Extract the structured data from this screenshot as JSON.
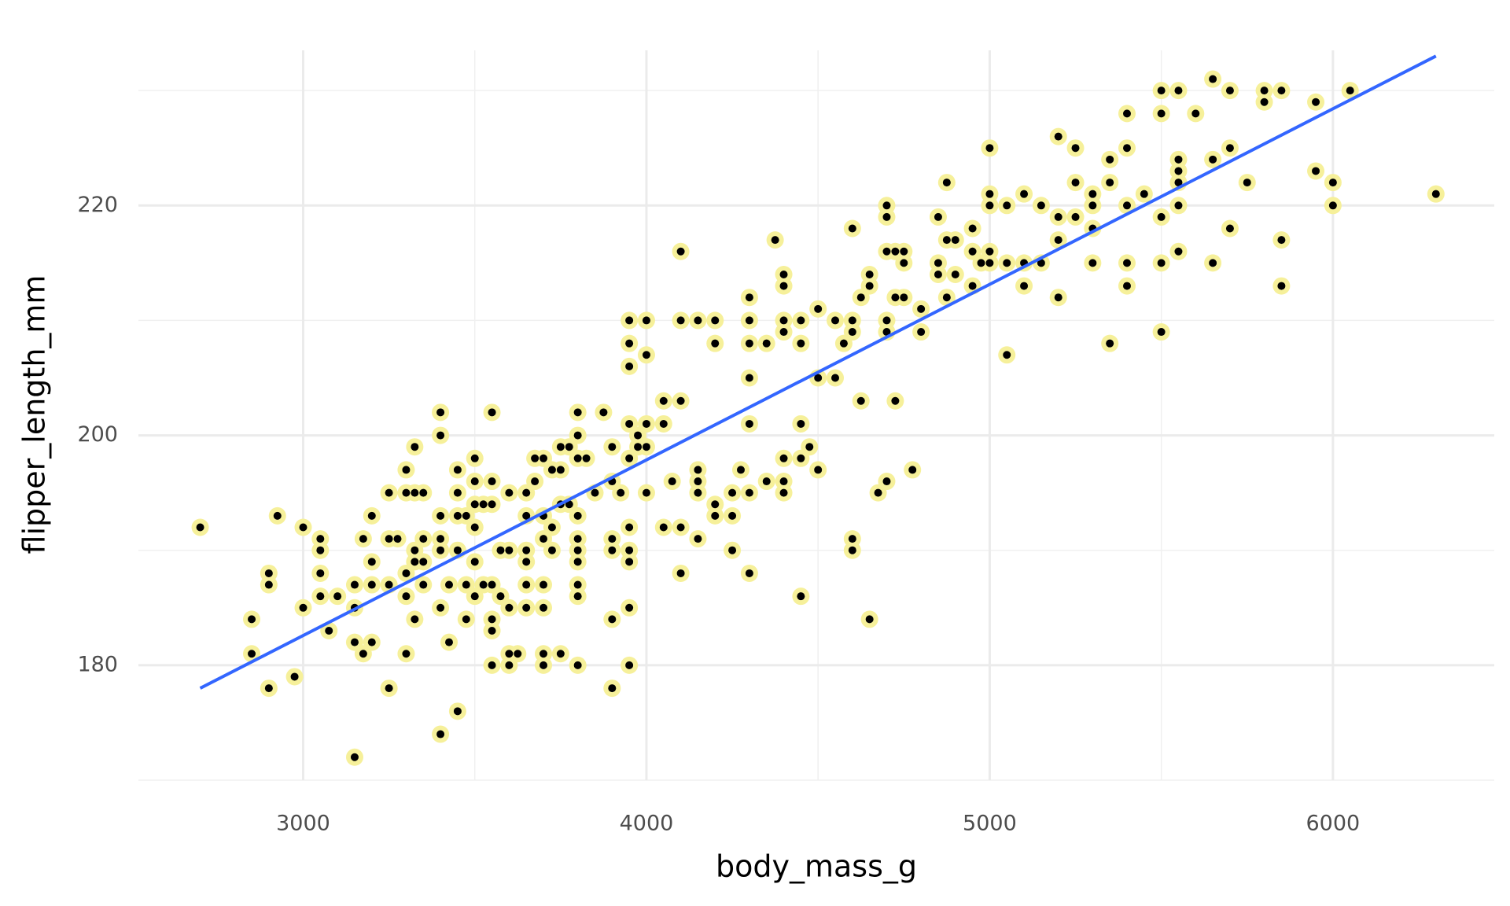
{
  "chart_data": {
    "type": "scatter",
    "x_label": "body_mass_g",
    "y_label": "flipper_length_mm",
    "xlim": [
      2520,
      6470
    ],
    "ylim": [
      170,
      233.5
    ],
    "xticks": [
      3000,
      4000,
      5000,
      6000
    ],
    "yticks": [
      180,
      200,
      220
    ],
    "xminor": [
      3500,
      4500,
      5500
    ],
    "yminor": [
      170,
      190,
      210,
      230
    ],
    "grid": true,
    "point_color": "#000000",
    "halo_color": "#f6f09a",
    "line_color": "#3366ff",
    "trend": {
      "x": [
        2700,
        6300
      ],
      "y": [
        178,
        233
      ]
    },
    "x": [
      2700,
      2850,
      2850,
      2900,
      2900,
      2900,
      2925,
      2975,
      3000,
      3000,
      3050,
      3050,
      3050,
      3050,
      3075,
      3100,
      3150,
      3150,
      3150,
      3150,
      3175,
      3175,
      3200,
      3200,
      3200,
      3200,
      3250,
      3250,
      3250,
      3250,
      3275,
      3300,
      3300,
      3300,
      3300,
      3300,
      3325,
      3325,
      3325,
      3325,
      3325,
      3350,
      3350,
      3350,
      3350,
      3400,
      3400,
      3400,
      3400,
      3400,
      3400,
      3400,
      3425,
      3425,
      3450,
      3450,
      3450,
      3450,
      3450,
      3475,
      3475,
      3475,
      3500,
      3500,
      3500,
      3500,
      3500,
      3500,
      3525,
      3525,
      3550,
      3550,
      3550,
      3550,
      3550,
      3550,
      3550,
      3575,
      3575,
      3600,
      3600,
      3600,
      3600,
      3600,
      3625,
      3650,
      3650,
      3650,
      3650,
      3650,
      3650,
      3675,
      3675,
      3700,
      3700,
      3700,
      3700,
      3700,
      3700,
      3700,
      3725,
      3725,
      3725,
      3750,
      3750,
      3750,
      3750,
      3775,
      3775,
      3800,
      3800,
      3800,
      3800,
      3800,
      3800,
      3800,
      3800,
      3800,
      3800,
      3825,
      3850,
      3875,
      3900,
      3900,
      3900,
      3900,
      3900,
      3900,
      3925,
      3950,
      3950,
      3950,
      3950,
      3950,
      3950,
      3950,
      3950,
      3950,
      3950,
      3975,
      3975,
      4000,
      4000,
      4000,
      4000,
      4000,
      4050,
      4050,
      4050,
      4075,
      4100,
      4100,
      4100,
      4100,
      4100,
      4150,
      4150,
      4150,
      4150,
      4150,
      4200,
      4200,
      4200,
      4200,
      4250,
      4250,
      4250,
      4275,
      4300,
      4300,
      4300,
      4300,
      4300,
      4300,
      4300,
      4350,
      4350,
      4375,
      4400,
      4400,
      4400,
      4400,
      4400,
      4400,
      4400,
      4450,
      4450,
      4450,
      4450,
      4450,
      4475,
      4500,
      4500,
      4500,
      4550,
      4550,
      4575,
      4600,
      4600,
      4600,
      4600,
      4600,
      4625,
      4625,
      4650,
      4650,
      4650,
      4675,
      4700,
      4700,
      4700,
      4700,
      4700,
      4700,
      4725,
      4725,
      4725,
      4750,
      4750,
      4750,
      4775,
      4800,
      4800,
      4850,
      4850,
      4850,
      4875,
      4875,
      4875,
      4900,
      4900,
      4950,
      4950,
      4950,
      4975,
      5000,
      5000,
      5000,
      5000,
      5000,
      5050,
      5050,
      5050,
      5100,
      5100,
      5100,
      5150,
      5150,
      5200,
      5200,
      5200,
      5200,
      5250,
      5250,
      5250,
      5300,
      5300,
      5300,
      5300,
      5350,
      5350,
      5350,
      5400,
      5400,
      5400,
      5400,
      5400,
      5450,
      5500,
      5500,
      5500,
      5500,
      5500,
      5550,
      5550,
      5550,
      5550,
      5550,
      5550,
      5600,
      5650,
      5650,
      5650,
      5700,
      5700,
      5700,
      5750,
      5800,
      5800,
      5850,
      5850,
      5850,
      5950,
      5950,
      6000,
      6000,
      6050,
      6300
    ],
    "y": [
      192,
      184,
      181,
      188,
      187,
      178,
      193,
      179,
      192,
      185,
      191,
      190,
      188,
      186,
      183,
      186,
      187,
      185,
      182,
      172,
      191,
      181,
      193,
      189,
      187,
      182,
      195,
      191,
      187,
      178,
      191,
      197,
      195,
      188,
      186,
      181,
      199,
      195,
      190,
      189,
      184,
      195,
      191,
      189,
      187,
      202,
      200,
      193,
      191,
      190,
      185,
      174,
      187,
      182,
      197,
      195,
      193,
      190,
      176,
      193,
      187,
      184,
      198,
      196,
      194,
      192,
      189,
      186,
      194,
      187,
      202,
      196,
      194,
      187,
      184,
      183,
      180,
      190,
      186,
      195,
      190,
      185,
      181,
      180,
      181,
      195,
      193,
      190,
      189,
      187,
      185,
      198,
      196,
      198,
      193,
      191,
      187,
      185,
      181,
      180,
      197,
      192,
      190,
      199,
      197,
      194,
      181,
      199,
      194,
      202,
      200,
      198,
      193,
      191,
      190,
      189,
      187,
      186,
      180,
      198,
      195,
      202,
      199,
      196,
      191,
      190,
      184,
      178,
      195,
      210,
      208,
      206,
      201,
      198,
      192,
      190,
      189,
      185,
      180,
      200,
      199,
      210,
      207,
      201,
      199,
      195,
      203,
      201,
      192,
      196,
      216,
      210,
      203,
      192,
      188,
      191,
      210,
      197,
      196,
      195,
      210,
      208,
      194,
      193,
      195,
      193,
      190,
      197,
      212,
      210,
      208,
      205,
      201,
      195,
      188,
      208,
      196,
      217,
      214,
      213,
      210,
      209,
      198,
      196,
      195,
      210,
      208,
      201,
      198,
      186,
      199,
      211,
      205,
      197,
      210,
      205,
      208,
      218,
      210,
      209,
      191,
      190,
      212,
      203,
      214,
      213,
      184,
      195,
      220,
      219,
      216,
      210,
      209,
      196,
      216,
      212,
      203,
      216,
      215,
      212,
      197,
      211,
      209,
      219,
      215,
      214,
      222,
      217,
      212,
      217,
      214,
      218,
      216,
      213,
      215,
      225,
      221,
      220,
      216,
      215,
      220,
      207,
      215,
      221,
      215,
      213,
      220,
      215,
      226,
      219,
      217,
      212,
      225,
      222,
      219,
      221,
      220,
      218,
      215,
      224,
      222,
      208,
      228,
      225,
      220,
      215,
      213,
      221,
      230,
      228,
      219,
      215,
      209,
      224,
      223,
      222,
      220,
      216,
      230,
      228,
      231,
      224,
      215,
      230,
      225,
      218,
      222,
      230,
      229,
      230,
      217,
      213,
      229,
      223,
      222,
      220,
      230,
      221
    ]
  }
}
